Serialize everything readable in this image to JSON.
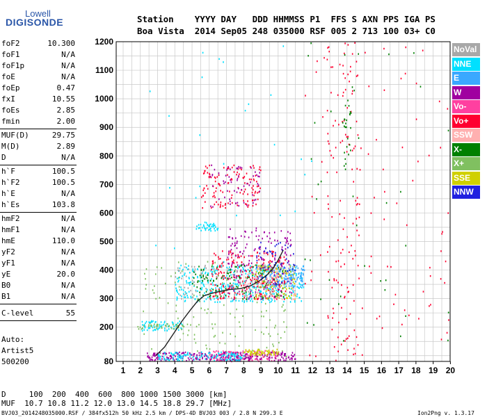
{
  "logo": {
    "line1": "Lowell",
    "line2": "DIGISONDE"
  },
  "header": {
    "row1": "Station    YYYY DAY   DDD HHMMSS P1  FFS S AXN PPS IGA PS",
    "row2": "Boa Vista  2014 Sep05 248 035000 RSF 005 2 713 100 03+ C0"
  },
  "params_group1": [
    {
      "k": "foF2",
      "v": "10.300"
    },
    {
      "k": "foF1",
      "v": "N/A"
    },
    {
      "k": "foF1p",
      "v": "N/A"
    },
    {
      "k": "foE",
      "v": "N/A"
    },
    {
      "k": "foEp",
      "v": "0.47"
    },
    {
      "k": "fxI",
      "v": "10.55"
    },
    {
      "k": "foEs",
      "v": "2.85"
    },
    {
      "k": "fmin",
      "v": "2.00"
    }
  ],
  "params_group2": [
    {
      "k": "MUF(D)",
      "v": "29.75"
    },
    {
      "k": "M(D)",
      "v": "2.89"
    },
    {
      "k": "D",
      "v": "N/A"
    }
  ],
  "params_group3": [
    {
      "k": "h`F",
      "v": "100.5"
    },
    {
      "k": "h`F2",
      "v": "100.5"
    },
    {
      "k": "h`E",
      "v": "N/A"
    },
    {
      "k": "h`Es",
      "v": "103.8"
    }
  ],
  "params_group4": [
    {
      "k": "hmF2",
      "v": "N/A"
    },
    {
      "k": "hmF1",
      "v": "N/A"
    },
    {
      "k": "hmE",
      "v": "110.0"
    },
    {
      "k": "yF2",
      "v": "N/A"
    },
    {
      "k": "yF1",
      "v": "N/A"
    },
    {
      "k": "yE",
      "v": "20.0"
    },
    {
      "k": "B0",
      "v": "N/A"
    },
    {
      "k": "B1",
      "v": "N/A"
    }
  ],
  "clevel": {
    "k": "C-level",
    "v": "55"
  },
  "auto": {
    "line1": "Auto:",
    "line2": "Artist5",
    "line3": "500200"
  },
  "footer": {
    "d_row": "D     100  200  400  600  800 1000 1500 3000 [km]",
    "muf_row": "MUF  10.7 10.8 11.2 12.0 13.0 14.5 18.8 29.7 [MHz]",
    "file_info": "BVJ03_2014248035000.RSF / 384fx512h 50 kHz 2.5 km / DPS-4D BVJ03 003 / 2.8 N 299.3 E",
    "version": "Ion2Png v. 1.3.17"
  },
  "legend": [
    {
      "label": "NoVal",
      "color": "#a8a8a8"
    },
    {
      "label": "NNE",
      "color": "#00e0ff"
    },
    {
      "label": "E",
      "color": "#3aa8ff"
    },
    {
      "label": "W",
      "color": "#a000a0"
    },
    {
      "label": "Vo-",
      "color": "#ff40a0"
    },
    {
      "label": "Vo+",
      "color": "#ff0030"
    },
    {
      "label": "SSW",
      "color": "#ffb0b0"
    },
    {
      "label": "X-",
      "color": "#008000"
    },
    {
      "label": "X+",
      "color": "#80c060"
    },
    {
      "label": "SSE",
      "color": "#d0d000"
    },
    {
      "label": "NNW",
      "color": "#2020e0"
    }
  ],
  "chart_data": {
    "type": "scatter",
    "xlim": [
      1,
      20
    ],
    "ylim": [
      80,
      1200
    ],
    "x_ticks": [
      1,
      2,
      3,
      4,
      5,
      6,
      7,
      8,
      9,
      10,
      11,
      12,
      13,
      14,
      15,
      16,
      17,
      18,
      19,
      20
    ],
    "y_ticks": [
      80,
      200,
      300,
      400,
      500,
      600,
      700,
      800,
      900,
      1000,
      1100,
      1200
    ],
    "grid": true,
    "legend_position": "right",
    "trace": {
      "x": [
        2.9,
        3.4,
        3.9,
        4.4,
        4.9,
        5.3,
        5.7,
        6.1,
        6.6,
        7.2,
        7.8,
        8.4,
        8.9,
        9.3,
        9.7,
        10.0,
        10.3
      ],
      "y": [
        100,
        130,
        175,
        220,
        260,
        290,
        310,
        318,
        325,
        332,
        335,
        345,
        362,
        380,
        405,
        435,
        470
      ]
    },
    "echo_regions": [
      {
        "name": "NNE",
        "color": "#00e0ff",
        "x": [
          4.0,
          11.5
        ],
        "y": [
          290,
          420
        ],
        "n": 420
      },
      {
        "name": "E",
        "color": "#3aa8ff",
        "x": [
          9.5,
          11.5
        ],
        "y": [
          340,
          420
        ],
        "n": 140
      },
      {
        "name": "Vo+",
        "color": "#ff0030",
        "x": [
          6.0,
          10.4
        ],
        "y": [
          300,
          470
        ],
        "n": 250
      },
      {
        "name": "W",
        "color": "#a000a0",
        "x": [
          7.0,
          10.8
        ],
        "y": [
          300,
          550
        ],
        "n": 180
      },
      {
        "name": "X-",
        "color": "#008000",
        "x": [
          5.0,
          10.5
        ],
        "y": [
          300,
          420
        ],
        "n": 120
      },
      {
        "name": "SSE",
        "color": "#d0d000",
        "x": [
          8.5,
          11.0
        ],
        "y": [
          300,
          420
        ],
        "n": 90
      },
      {
        "name": "X+",
        "color": "#80c060",
        "x": [
          2.0,
          10.5
        ],
        "y": [
          80,
          440
        ],
        "n": 150
      },
      {
        "name": "SSW",
        "color": "#ffb0b0",
        "x": [
          8.0,
          11.0
        ],
        "y": [
          300,
          420
        ],
        "n": 90
      },
      {
        "name": "NNW",
        "color": "#2020e0",
        "x": [
          8.5,
          11.0
        ],
        "y": [
          350,
          500
        ],
        "n": 60
      },
      {
        "name": "NoVal",
        "color": "#a8a8a8",
        "x": [
          4.0,
          10.0
        ],
        "y": [
          300,
          420
        ],
        "n": 80
      },
      {
        "name": "Vo-",
        "color": "#ff40a0",
        "x": [
          6.0,
          10.0
        ],
        "y": [
          80,
          120
        ],
        "n": 150
      },
      {
        "name": "W",
        "color": "#a000a0",
        "x": [
          2.3,
          11.0
        ],
        "y": [
          85,
          115
        ],
        "n": 260
      },
      {
        "name": "NNE",
        "color": "#00e0ff",
        "x": [
          3.0,
          8.0
        ],
        "y": [
          85,
          115
        ],
        "n": 120
      },
      {
        "name": "SSE",
        "color": "#d0d000",
        "x": [
          8.0,
          10.0
        ],
        "y": [
          105,
          125
        ],
        "n": 60
      },
      {
        "name": "NNE",
        "color": "#00e0ff",
        "x": [
          2.0,
          4.5
        ],
        "y": [
          190,
          225
        ],
        "n": 70
      },
      {
        "name": "X+",
        "color": "#80c060",
        "x": [
          1.8,
          4.5
        ],
        "y": [
          195,
          215
        ],
        "n": 40
      },
      {
        "name": "Vo+",
        "color": "#ff0030",
        "x": [
          5.5,
          9.0
        ],
        "y": [
          620,
          770
        ],
        "n": 130
      },
      {
        "name": "W",
        "color": "#a000a0",
        "x": [
          6.0,
          9.0
        ],
        "y": [
          620,
          770
        ],
        "n": 60
      },
      {
        "name": "NNE",
        "color": "#00e0ff",
        "x": [
          5.2,
          6.5
        ],
        "y": [
          540,
          570
        ],
        "n": 40
      },
      {
        "name": "Vo+",
        "color": "#ff0030",
        "x": [
          12.8,
          14.8
        ],
        "y": [
          80,
          1200
        ],
        "n": 120
      },
      {
        "name": "X-",
        "color": "#008000",
        "x": [
          13.8,
          14.2
        ],
        "y": [
          750,
          1000
        ],
        "n": 25
      },
      {
        "name": "Vo+",
        "color": "#ff0030",
        "x": [
          11.5,
          20
        ],
        "y": [
          100,
          1200
        ],
        "n": 90
      },
      {
        "name": "X-",
        "color": "#008000",
        "x": [
          11.5,
          20
        ],
        "y": [
          100,
          1200
        ],
        "n": 40
      },
      {
        "name": "NNE",
        "color": "#00e0ff",
        "x": [
          2.0,
          12.0
        ],
        "y": [
          400,
          1200
        ],
        "n": 25
      }
    ]
  }
}
